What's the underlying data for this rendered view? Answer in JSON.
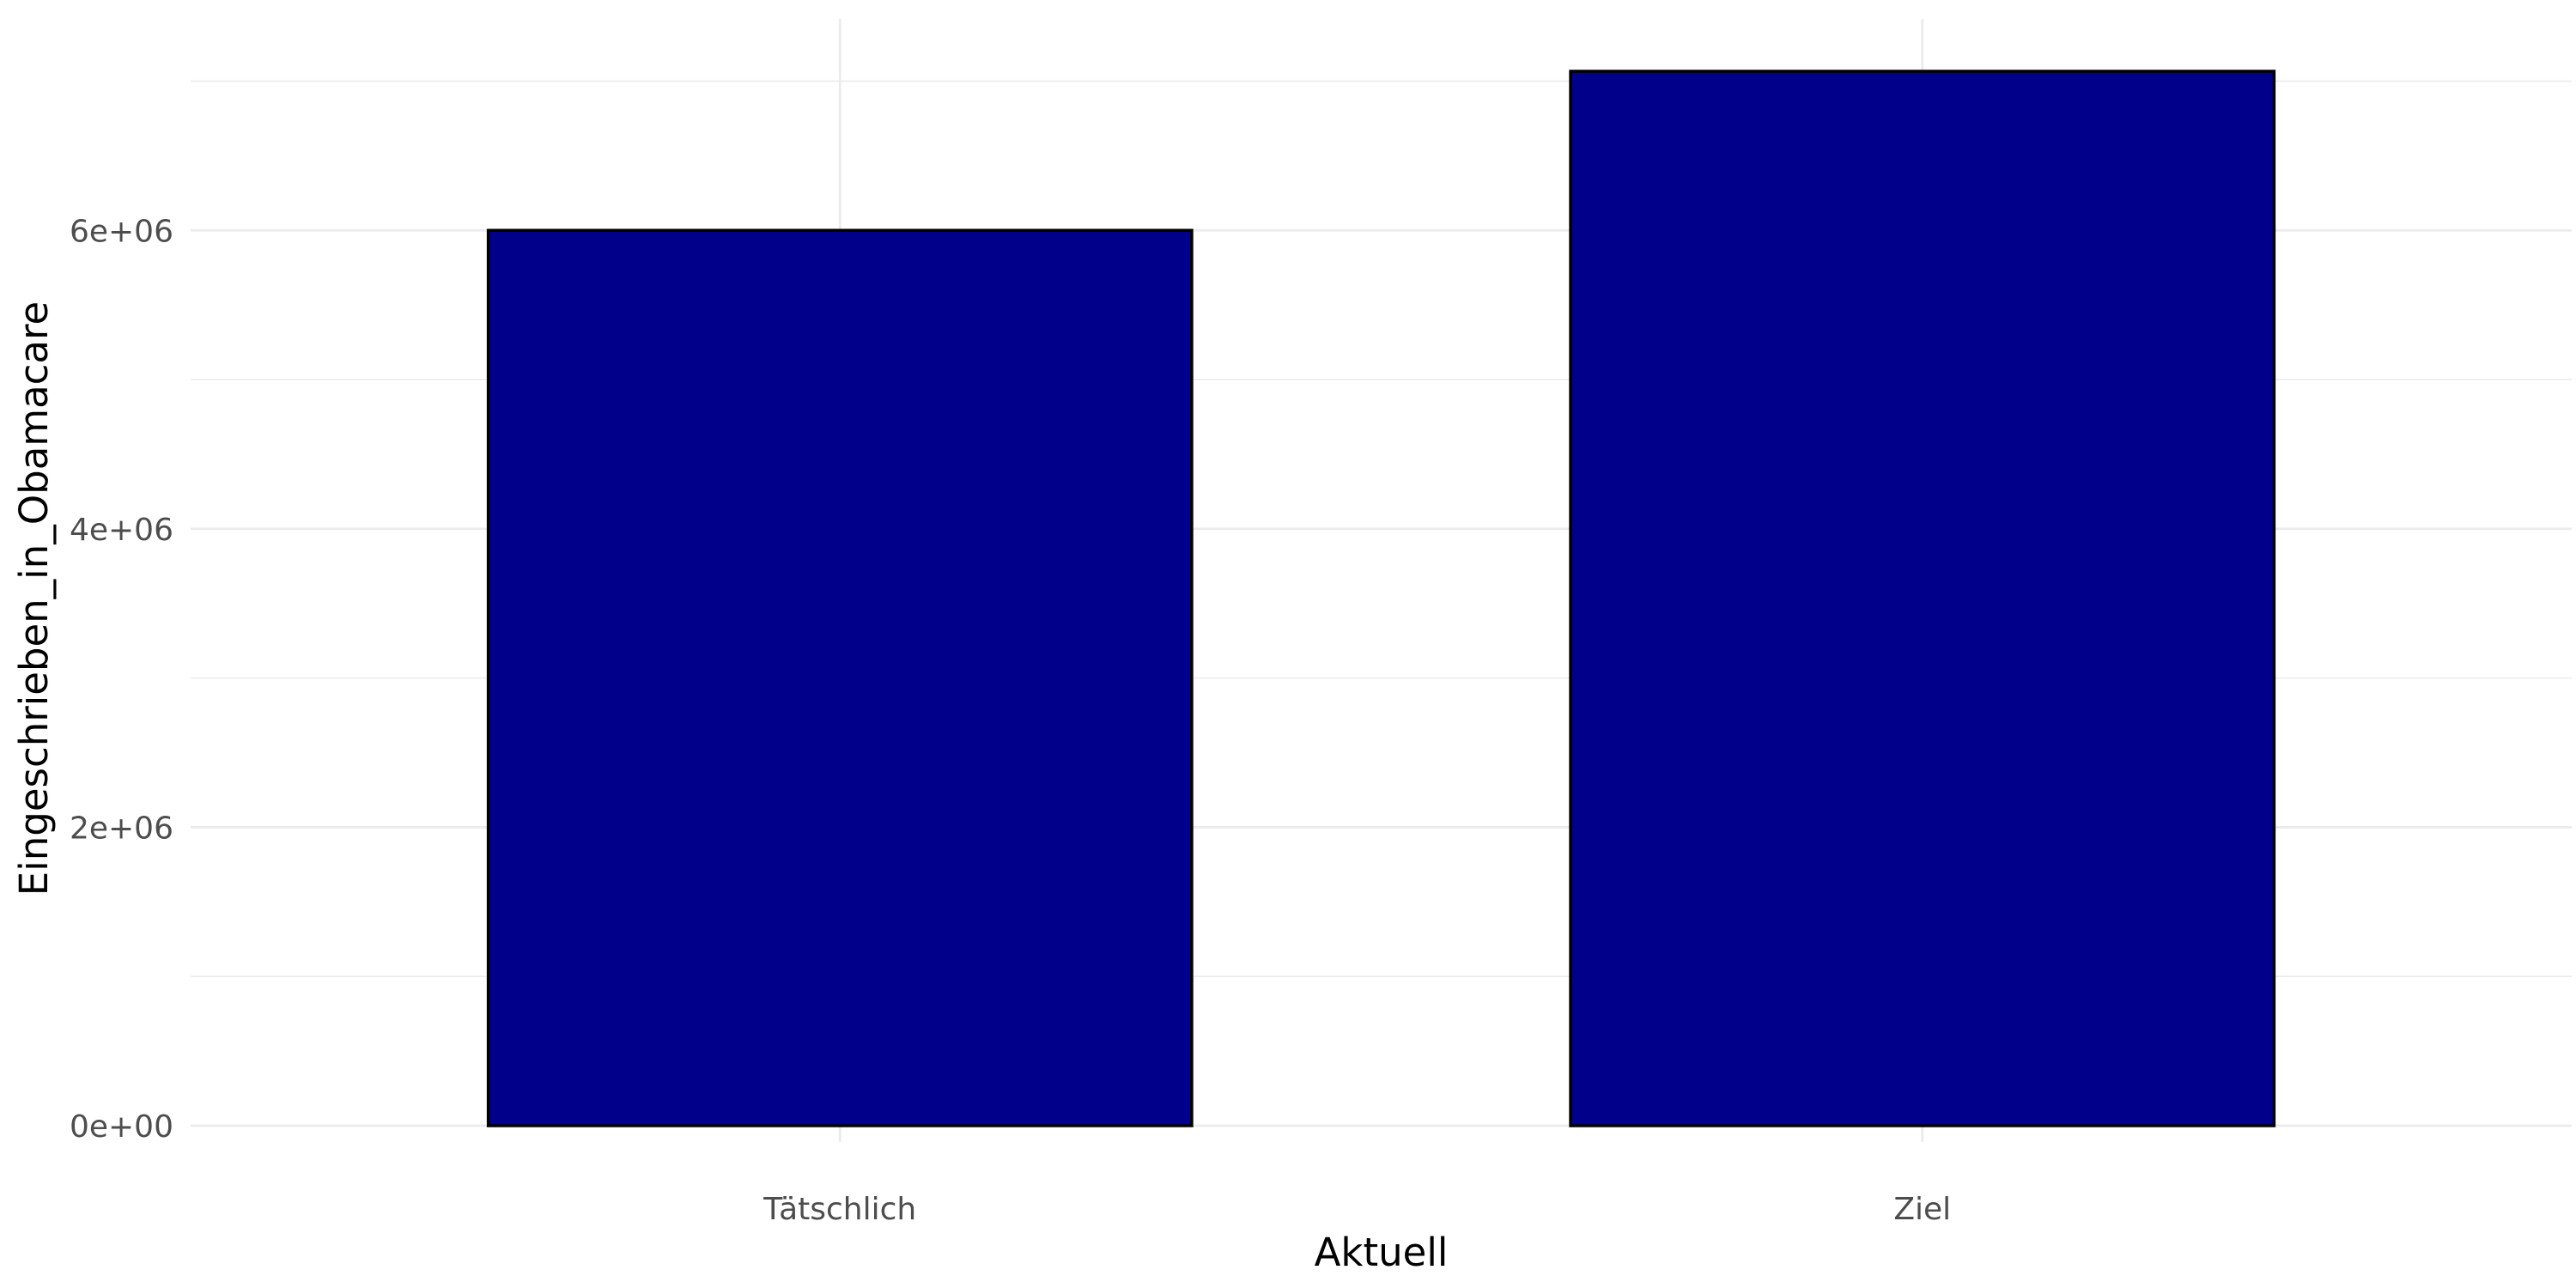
{
  "chart_data": {
    "type": "bar",
    "title": "",
    "xlabel": "Aktuell",
    "ylabel": "Eingeschrieben_in_Obamacare",
    "categories": [
      "Tätschlich",
      "Ziel"
    ],
    "values": [
      6000000,
      7066000
    ],
    "ylim": [
      0,
      7066000
    ],
    "yticks": [
      0,
      2000000,
      4000000,
      6000000
    ],
    "ytick_labels": [
      "0e+00",
      "2e+06",
      "4e+06",
      "6e+06"
    ],
    "grid": true,
    "legend": "none",
    "colors": {
      "bar_fill": "#00008B",
      "bar_stroke": "#000000",
      "grid": "#ebebeb",
      "tick_text": "#4d4d4d",
      "axis_title": "#000000",
      "background": "#ffffff"
    }
  }
}
